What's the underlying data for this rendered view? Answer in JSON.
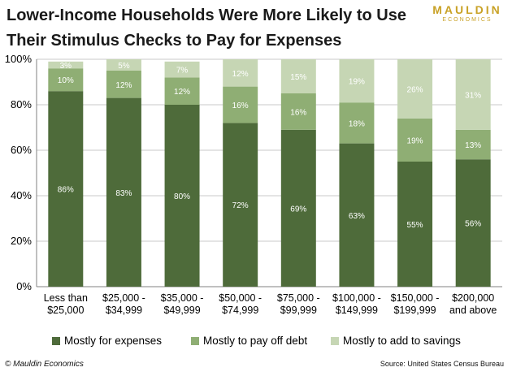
{
  "title": "Lower-Income Households Were More Likely to Use Their Stimulus Checks to Pay for Expenses",
  "logo": {
    "top": "MAULDIN",
    "bottom": "ECONOMICS"
  },
  "copyright": "© Mauldin Economics",
  "source": "Source: United States Census Bureau",
  "colors": {
    "expenses": "#4e6b3a",
    "debt": "#8fae74",
    "savings": "#c6d6b4",
    "grid": "#c8c8c8",
    "axis": "#808080"
  },
  "chart_data": {
    "type": "bar",
    "stacked": true,
    "categories": [
      [
        "Less than",
        "$25,000"
      ],
      [
        "$25,000 -",
        "$34,999"
      ],
      [
        "$35,000 -",
        "$49,999"
      ],
      [
        "$50,000 -",
        "$74,999"
      ],
      [
        "$75,000 -",
        "$99,999"
      ],
      [
        "$100,000 -",
        "$149,999"
      ],
      [
        "$150,000 -",
        "$199,999"
      ],
      [
        "$200,000",
        "and above"
      ]
    ],
    "series": [
      {
        "name": "Mostly for expenses",
        "values": [
          86,
          83,
          80,
          72,
          69,
          63,
          55,
          56
        ]
      },
      {
        "name": "Mostly to pay off debt",
        "values": [
          10,
          12,
          12,
          16,
          16,
          18,
          19,
          13
        ]
      },
      {
        "name": "Mostly to add to savings",
        "values": [
          3,
          5,
          7,
          12,
          15,
          19,
          26,
          31
        ]
      }
    ],
    "yticks": [
      "0%",
      "20%",
      "40%",
      "60%",
      "80%",
      "100%"
    ],
    "ylim": [
      0,
      100
    ],
    "grid": true,
    "legend_position": "bottom",
    "data_label_suffix": "%"
  }
}
